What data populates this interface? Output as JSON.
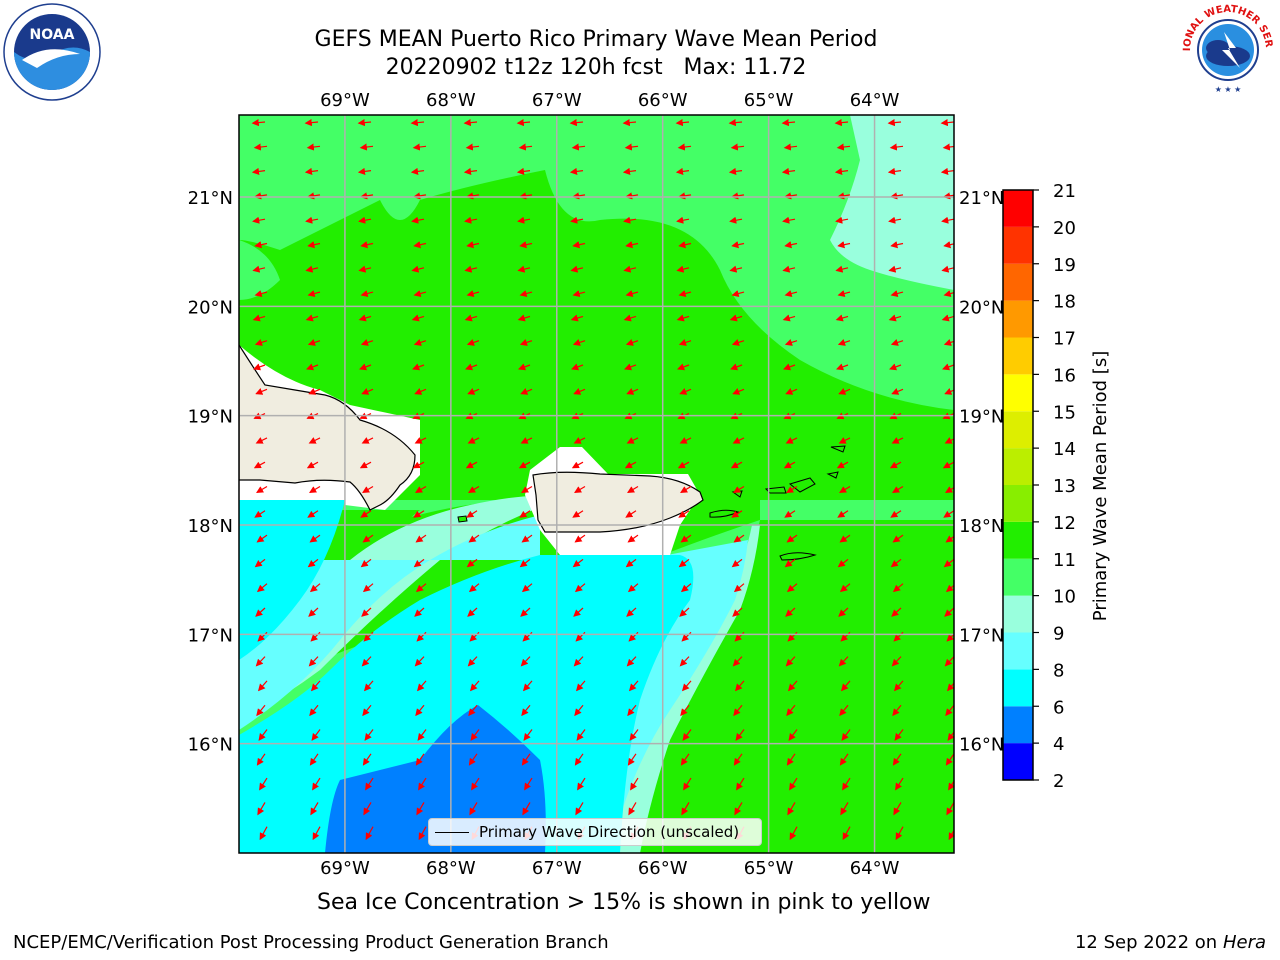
{
  "header": {
    "title_line1": "GEFS MEAN Puerto Rico Primary Wave Mean Period",
    "title_line2": "20220902 t12z 120h fcst   Max: 11.72"
  },
  "logos": {
    "left": "noaa-logo",
    "left_text": "NOAA",
    "right": "nws-logo",
    "right_text": "NATIONAL WEATHER SERVICE"
  },
  "map": {
    "lon_ticks": [
      "69°W",
      "68°W",
      "67°W",
      "66°W",
      "65°W",
      "64°W"
    ],
    "lat_ticks": [
      "21°N",
      "20°N",
      "19°N",
      "18°N",
      "17°N",
      "16°N"
    ],
    "extent": {
      "lon": [
        -70.0,
        -63.25
      ],
      "lat": [
        15.0,
        21.75
      ]
    },
    "arrow_color": "#ff0000",
    "land_color": "#f0ede0",
    "legend_label": "Primary Wave Direction (unscaled)"
  },
  "colorbar": {
    "label": "Primary Wave Mean Period [s]",
    "ticks": [
      "2",
      "4",
      "6",
      "8",
      "9",
      "10",
      "11",
      "12",
      "13",
      "14",
      "15",
      "16",
      "17",
      "18",
      "19",
      "20",
      "21"
    ],
    "levels": [
      {
        "from": 2,
        "to": 4,
        "color": "#0000ff"
      },
      {
        "from": 4,
        "to": 6,
        "color": "#0080ff"
      },
      {
        "from": 6,
        "to": 8,
        "color": "#00ffff"
      },
      {
        "from": 8,
        "to": 9,
        "color": "#66ffff"
      },
      {
        "from": 9,
        "to": 10,
        "color": "#99ffdd"
      },
      {
        "from": 10,
        "to": 11,
        "color": "#44ff66"
      },
      {
        "from": 11,
        "to": 12,
        "color": "#22ee00"
      },
      {
        "from": 12,
        "to": 13,
        "color": "#88ee00"
      },
      {
        "from": 13,
        "to": 14,
        "color": "#bbee00"
      },
      {
        "from": 14,
        "to": 15,
        "color": "#ddee00"
      },
      {
        "from": 15,
        "to": 16,
        "color": "#ffff00"
      },
      {
        "from": 16,
        "to": 17,
        "color": "#ffcc00"
      },
      {
        "from": 17,
        "to": 18,
        "color": "#ff9900"
      },
      {
        "from": 18,
        "to": 19,
        "color": "#ff6600"
      },
      {
        "from": 19,
        "to": 20,
        "color": "#ff3300"
      },
      {
        "from": 20,
        "to": 21,
        "color": "#ff0000"
      }
    ]
  },
  "notes": {
    "sea_ice": "Sea Ice Concentration > 15% is shown in pink to yellow"
  },
  "footer": {
    "left": "NCEP/EMC/Verification Post Processing Product Generation Branch",
    "right_date": "12 Sep 2022 on",
    "right_host": "Hera"
  }
}
